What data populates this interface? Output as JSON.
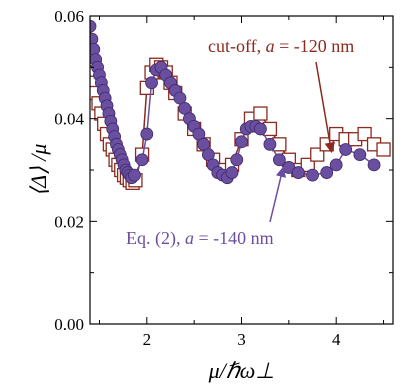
{
  "chart_data": {
    "type": "scatter",
    "xlabel": "μ/ℏω⊥",
    "ylabel": "⟨Δ⟩ /μ",
    "xlim": [
      1.4,
      4.6
    ],
    "ylim": [
      0.0,
      0.06
    ],
    "xticks": [
      2,
      3,
      4
    ],
    "yticks": [
      0.0,
      0.02,
      0.04,
      0.06
    ],
    "ytick_labels": [
      "0.00",
      "0.02",
      "0.04",
      "0.06"
    ],
    "grid": false,
    "series": [
      {
        "name": "cut-off, a = -120 nm",
        "marker": "open-square",
        "color": "#8b2a1e",
        "x": [
          1.4,
          1.43,
          1.46,
          1.49,
          1.52,
          1.55,
          1.58,
          1.61,
          1.64,
          1.67,
          1.7,
          1.73,
          1.76,
          1.79,
          1.82,
          1.85,
          1.88,
          1.95,
          2.0,
          2.05,
          2.1,
          2.15,
          2.2,
          2.25,
          2.3,
          2.4,
          2.5,
          2.6,
          2.7,
          2.8,
          2.9,
          3.0,
          3.1,
          3.2,
          3.3,
          3.4,
          3.5,
          3.6,
          3.7,
          3.8,
          3.9,
          4.0,
          4.1,
          4.2,
          4.3,
          4.4,
          4.5
        ],
        "y": [
          0.049,
          0.047,
          0.045,
          0.043,
          0.041,
          0.039,
          0.037,
          0.035,
          0.034,
          0.032,
          0.031,
          0.03,
          0.029,
          0.0285,
          0.028,
          0.0275,
          0.028,
          0.033,
          0.046,
          0.049,
          0.0505,
          0.05,
          0.049,
          0.047,
          0.045,
          0.041,
          0.038,
          0.035,
          0.032,
          0.03,
          0.031,
          0.036,
          0.04,
          0.041,
          0.038,
          0.035,
          0.032,
          0.03,
          0.031,
          0.033,
          0.035,
          0.037,
          0.036,
          0.036,
          0.037,
          0.035,
          0.034
        ]
      },
      {
        "name": "Eq. (2), a = -140 nm",
        "marker": "filled-circle",
        "color": "#6a4ea0",
        "x": [
          1.4,
          1.42,
          1.44,
          1.46,
          1.48,
          1.5,
          1.52,
          1.54,
          1.56,
          1.58,
          1.6,
          1.62,
          1.64,
          1.66,
          1.68,
          1.7,
          1.72,
          1.74,
          1.76,
          1.78,
          1.8,
          1.82,
          1.84,
          1.87,
          1.95,
          2.0,
          2.05,
          2.1,
          2.15,
          2.2,
          2.25,
          2.3,
          2.35,
          2.4,
          2.45,
          2.5,
          2.55,
          2.6,
          2.65,
          2.7,
          2.75,
          2.8,
          2.85,
          2.9,
          2.95,
          3.0,
          3.05,
          3.1,
          3.15,
          3.2,
          3.3,
          3.4,
          3.5,
          3.6,
          3.75,
          3.9,
          4.0,
          4.1,
          4.25,
          4.4
        ],
        "y": [
          0.058,
          0.0555,
          0.0535,
          0.0515,
          0.05,
          0.0485,
          0.047,
          0.0455,
          0.044,
          0.0425,
          0.041,
          0.0395,
          0.038,
          0.0365,
          0.035,
          0.034,
          0.033,
          0.032,
          0.031,
          0.03,
          0.0295,
          0.029,
          0.0285,
          0.029,
          0.032,
          0.037,
          0.047,
          0.0495,
          0.05,
          0.0485,
          0.047,
          0.0455,
          0.044,
          0.042,
          0.04,
          0.0385,
          0.037,
          0.035,
          0.033,
          0.031,
          0.0295,
          0.029,
          0.0285,
          0.0295,
          0.032,
          0.0355,
          0.038,
          0.0385,
          0.0385,
          0.038,
          0.035,
          0.032,
          0.0305,
          0.0295,
          0.029,
          0.0295,
          0.031,
          0.034,
          0.033,
          0.031
        ]
      }
    ],
    "annotations": [
      {
        "prefix": "cut-off, ",
        "var": "a",
        "suffix": " = -120 nm",
        "color": "#8b2a1e",
        "target_x": 3.95,
        "target_y": 0.0335
      },
      {
        "prefix": "Eq. (2), ",
        "var": "a",
        "suffix": " = -140 nm",
        "color": "#6a4ea0",
        "target_x": 3.44,
        "target_y": 0.0305
      }
    ]
  }
}
